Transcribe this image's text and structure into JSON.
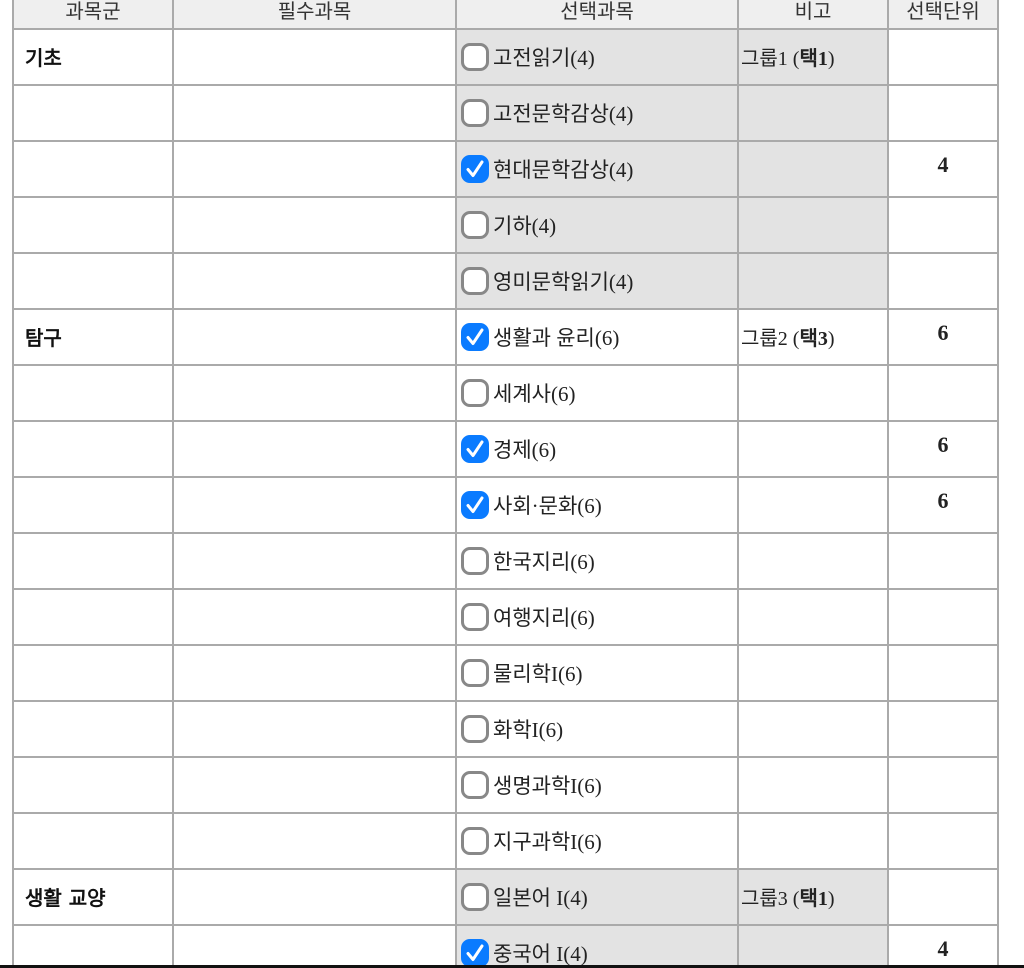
{
  "header": [
    "과목군",
    "필수과목",
    "선택과목",
    "비고",
    "선택단위"
  ],
  "rows": [
    {
      "group": "기초",
      "subject": "고전읽기(4)",
      "checked": false,
      "note_prefix": "그룹1 (",
      "note_bold": "택1",
      "note_suffix": ")",
      "unit": "",
      "gray": true
    },
    {
      "group": "",
      "subject": "고전문학감상(4)",
      "checked": false,
      "unit": "",
      "gray": true
    },
    {
      "group": "",
      "subject": "현대문학감상(4)",
      "checked": true,
      "unit": "4",
      "gray": true
    },
    {
      "group": "",
      "subject": "기하(4)",
      "checked": false,
      "unit": "",
      "gray": true
    },
    {
      "group": "",
      "subject": "영미문학읽기(4)",
      "checked": false,
      "unit": "",
      "gray": true
    },
    {
      "group": "탐구",
      "subject": "생활과 윤리(6)",
      "checked": true,
      "note_prefix": "그룹2 (",
      "note_bold": "택3",
      "note_suffix": ")",
      "unit": "6",
      "gray": false
    },
    {
      "group": "",
      "subject": "세계사(6)",
      "checked": false,
      "unit": "",
      "gray": false
    },
    {
      "group": "",
      "subject": "경제(6)",
      "checked": true,
      "unit": "6",
      "gray": false
    },
    {
      "group": "",
      "subject": "사회·문화(6)",
      "checked": true,
      "unit": "6",
      "gray": false
    },
    {
      "group": "",
      "subject": "한국지리(6)",
      "checked": false,
      "unit": "",
      "gray": false
    },
    {
      "group": "",
      "subject": "여행지리(6)",
      "checked": false,
      "unit": "",
      "gray": false
    },
    {
      "group": "",
      "subject": "물리학I(6)",
      "checked": false,
      "unit": "",
      "gray": false
    },
    {
      "group": "",
      "subject": "화학I(6)",
      "checked": false,
      "unit": "",
      "gray": false
    },
    {
      "group": "",
      "subject": "생명과학I(6)",
      "checked": false,
      "unit": "",
      "gray": false
    },
    {
      "group": "",
      "subject": "지구과학I(6)",
      "checked": false,
      "unit": "",
      "gray": false
    },
    {
      "group": "생활 교양",
      "subject": "일본어 I(4)",
      "checked": false,
      "note_prefix": "그룹3 (",
      "note_bold": "택1",
      "note_suffix": ")",
      "unit": "",
      "gray": true
    },
    {
      "group": "",
      "subject": "중국어 I(4)",
      "checked": true,
      "unit": "4",
      "gray": true
    }
  ],
  "colors": {
    "checkbox_checked": "#0a7bff",
    "gray_cell": "#e3e3e3",
    "header_bg": "#efefef"
  }
}
